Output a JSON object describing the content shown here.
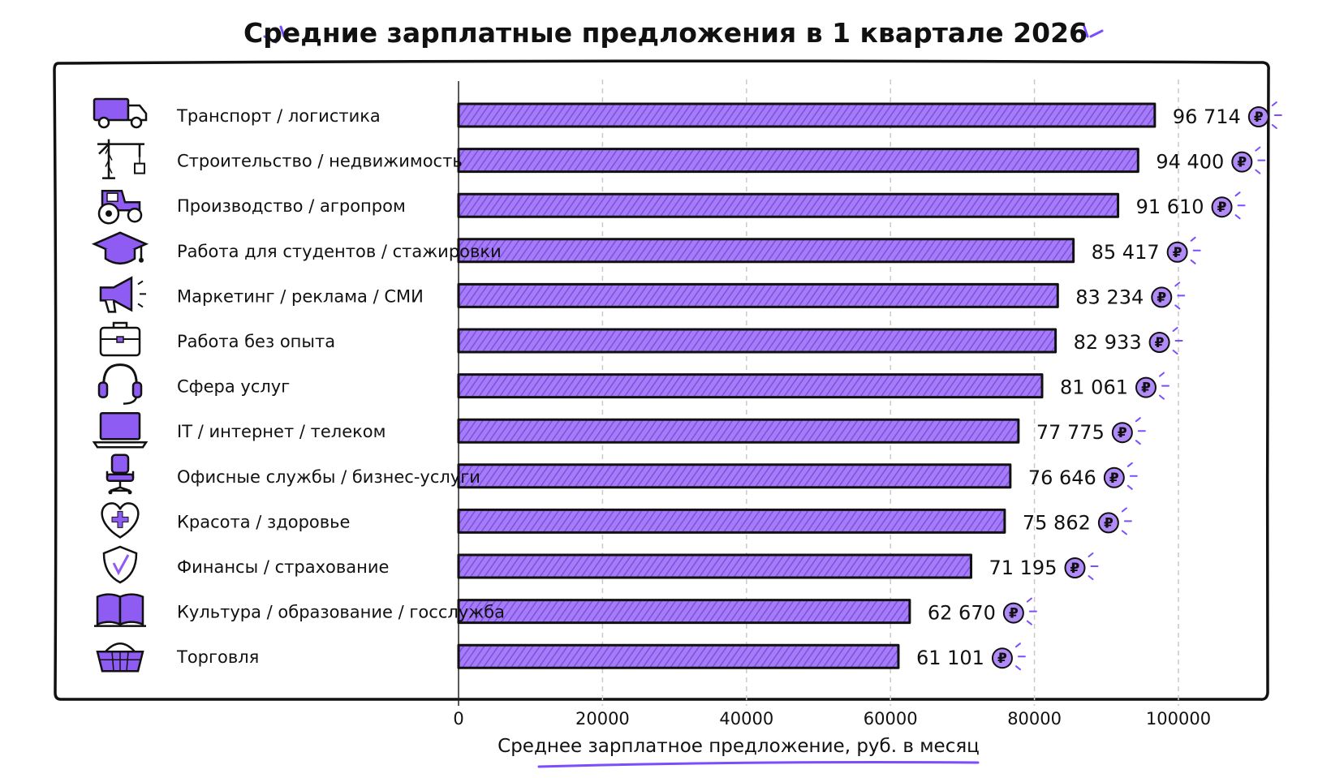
{
  "chart_data": {
    "type": "bar",
    "orientation": "horizontal",
    "title": "Средние зарплатные предложения в 1 квартале 2026",
    "xlabel": "Среднее зарплатное предложение, руб. в месяц",
    "ylabel": "",
    "xlim": [
      0,
      105000
    ],
    "xticks": [
      0,
      20000,
      40000,
      60000,
      80000,
      100000
    ],
    "grid": true,
    "currency_symbol": "₽",
    "bar_color": "#9b6ef3",
    "accent_color": "#7c4dff",
    "categories": [
      {
        "label": "Транспорт / логистика",
        "icon": "truck-icon",
        "value": 96714,
        "value_label": "96 714"
      },
      {
        "label": "Строительство / недвижимость",
        "icon": "crane-icon",
        "value": 94400,
        "value_label": "94 400"
      },
      {
        "label": "Производство / агропром",
        "icon": "tractor-icon",
        "value": 91610,
        "value_label": "91 610"
      },
      {
        "label": "Работа для студентов / стажировки",
        "icon": "graduation-cap-icon",
        "value": 85417,
        "value_label": "85 417"
      },
      {
        "label": "Маркетинг / реклама / СМИ",
        "icon": "megaphone-icon",
        "value": 83234,
        "value_label": "83 234"
      },
      {
        "label": "Работа без опыта",
        "icon": "briefcase-icon",
        "value": 82933,
        "value_label": "82 933"
      },
      {
        "label": "Сфера услуг",
        "icon": "headset-icon",
        "value": 81061,
        "value_label": "81 061"
      },
      {
        "label": "IT / интернет / телеком",
        "icon": "laptop-icon",
        "value": 77775,
        "value_label": "77 775"
      },
      {
        "label": "Офисные службы / бизнес-услуги",
        "icon": "office-chair-icon",
        "value": 76646,
        "value_label": "76 646"
      },
      {
        "label": "Красота / здоровье",
        "icon": "heart-icon",
        "value": 75862,
        "value_label": "75 862"
      },
      {
        "label": "Финансы / страхование",
        "icon": "shield-icon",
        "value": 71195,
        "value_label": "71 195"
      },
      {
        "label": "Культура / образование / госслужба",
        "icon": "book-icon",
        "value": 62670,
        "value_label": "62 670"
      },
      {
        "label": "Торговля",
        "icon": "basket-icon",
        "value": 61101,
        "value_label": "61 101"
      }
    ]
  }
}
